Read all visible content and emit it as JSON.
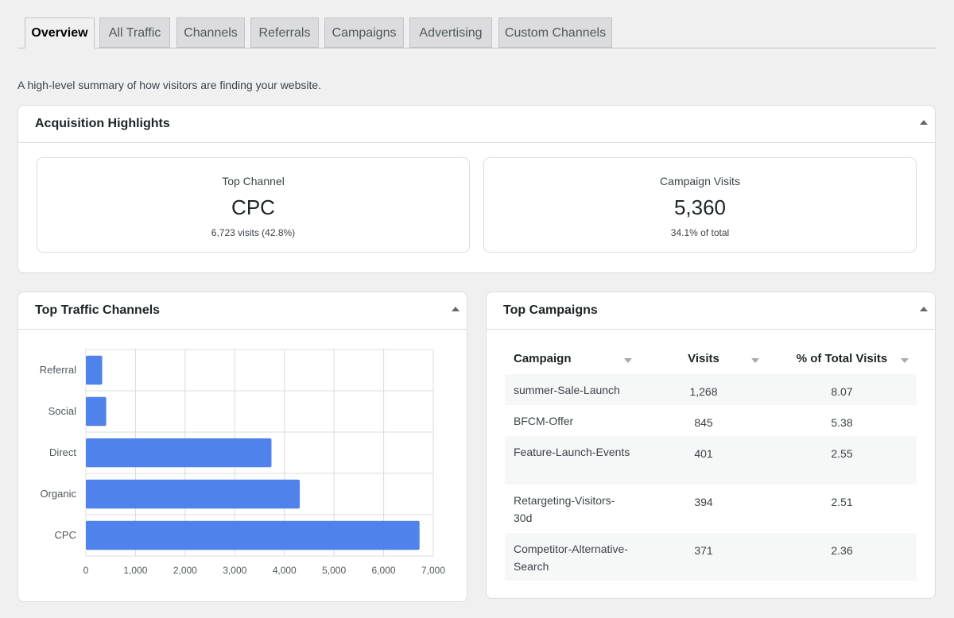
{
  "tabs": [
    "Overview",
    "All Traffic",
    "Channels",
    "Referrals",
    "Campaigns",
    "Advertising",
    "Custom Channels"
  ],
  "active_tab": "Overview",
  "intro": "A high-level summary of how visitors are finding your website.",
  "highlights": {
    "title": "Acquisition Highlights",
    "top_channel": {
      "label": "Top Channel",
      "value": "CPC",
      "sub": "6,723 visits (42.8%)"
    },
    "campaign_visits": {
      "label": "Campaign Visits",
      "value": "5,360",
      "sub": "34.1% of total"
    }
  },
  "channels_panel": {
    "title": "Top Traffic Channels"
  },
  "campaigns_panel": {
    "title": "Top Campaigns",
    "columns": [
      "Campaign",
      "Visits",
      "% of Total Visits"
    ],
    "rows": [
      {
        "campaign": "summer-Sale-Launch",
        "visits": "1,268",
        "pct": "8.07"
      },
      {
        "campaign": "BFCM-Offer",
        "visits": "845",
        "pct": "5.38"
      },
      {
        "campaign": "Feature-Launch-Events",
        "visits": "401",
        "pct": "2.55"
      },
      {
        "campaign": "Retargeting-Visitors-30d",
        "visits": "394",
        "pct": "2.51"
      },
      {
        "campaign": "Competitor-Alternative-Search",
        "visits": "371",
        "pct": "2.36"
      }
    ]
  },
  "colors": {
    "bar": "#5082eb",
    "accent": "#2271b1"
  },
  "chart_data": {
    "type": "bar",
    "orientation": "horizontal",
    "categories": [
      "Referral",
      "Social",
      "Direct",
      "Organic",
      "CPC"
    ],
    "values": [
      330,
      410,
      3740,
      4310,
      6723
    ],
    "xlim": [
      0,
      7000
    ],
    "x_ticks": [
      0,
      1000,
      2000,
      3000,
      4000,
      5000,
      6000,
      7000
    ],
    "x_tick_labels": [
      "0",
      "1,000",
      "2,000",
      "3,000",
      "4,000",
      "5,000",
      "6,000",
      "7,000"
    ],
    "grid": true
  }
}
